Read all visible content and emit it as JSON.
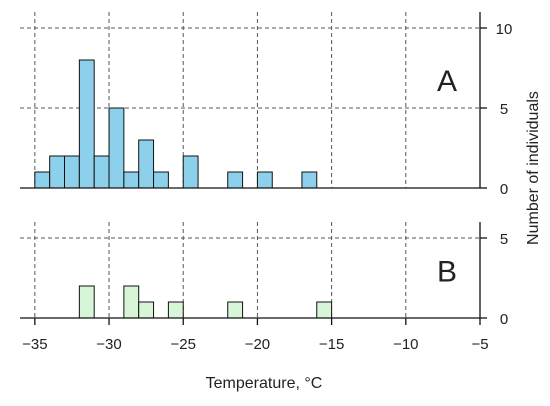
{
  "chart_data": {
    "type": "bar",
    "xlabel": "Temperature, °C",
    "ylabel": "Number of individuals",
    "xlim": [
      -36,
      -5
    ],
    "xticks": [
      -35,
      -30,
      -25,
      -20,
      -15,
      -10,
      -5
    ],
    "bin_width": 1,
    "grid": true,
    "panels": [
      {
        "label": "A",
        "color": "#8dd0ec",
        "ylim": [
          0,
          11
        ],
        "yticks": [
          0,
          5,
          10
        ],
        "bins": [
          {
            "x0": -35,
            "count": 1
          },
          {
            "x0": -34,
            "count": 2
          },
          {
            "x0": -33,
            "count": 2
          },
          {
            "x0": -32,
            "count": 8
          },
          {
            "x0": -31,
            "count": 2
          },
          {
            "x0": -30,
            "count": 5
          },
          {
            "x0": -29,
            "count": 1
          },
          {
            "x0": -28,
            "count": 3
          },
          {
            "x0": -27,
            "count": 1
          },
          {
            "x0": -25,
            "count": 2
          },
          {
            "x0": -22,
            "count": 1
          },
          {
            "x0": -20,
            "count": 1
          },
          {
            "x0": -17,
            "count": 1
          }
        ]
      },
      {
        "label": "B",
        "color": "#d7f5d7",
        "ylim": [
          0,
          6
        ],
        "yticks": [
          0,
          5
        ],
        "bins": [
          {
            "x0": -32,
            "count": 2
          },
          {
            "x0": -29,
            "count": 2
          },
          {
            "x0": -28,
            "count": 1
          },
          {
            "x0": -26,
            "count": 1
          },
          {
            "x0": -22,
            "count": 1
          },
          {
            "x0": -16,
            "count": 1
          }
        ]
      }
    ]
  }
}
